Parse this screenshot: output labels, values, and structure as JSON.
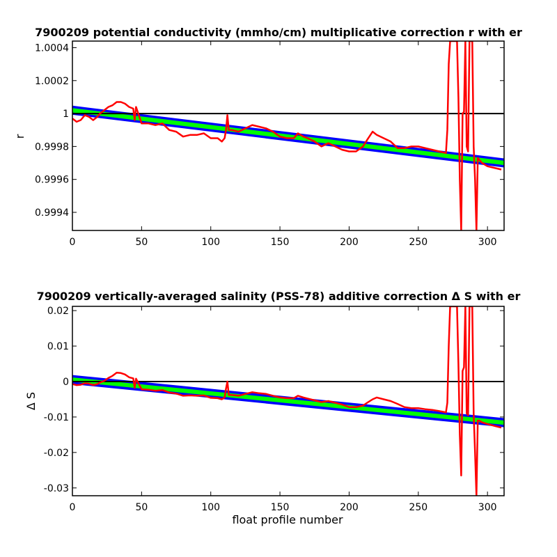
{
  "chart_data": [
    {
      "type": "line",
      "title": "7900209 potential conductivity (mmho/cm) multiplicative correction r with er",
      "xlabel": "",
      "ylabel": "r",
      "xlim": [
        0,
        312
      ],
      "ylim": [
        0.99929,
        1.00044
      ],
      "xticks": [
        0,
        50,
        100,
        150,
        200,
        250,
        300
      ],
      "xtick_labels": [
        "0",
        "50",
        "100",
        "150",
        "200",
        "250",
        "300"
      ],
      "yticks": [
        0.9994,
        0.9996,
        0.9998,
        1.0,
        1.0002,
        1.0004
      ],
      "ytick_labels": [
        "0.9994",
        "0.9996",
        "0.9998",
        "1",
        "1.0002",
        "1.0004"
      ],
      "grid": false,
      "reference_line": {
        "y": 1.0,
        "color": "#000000"
      },
      "series": [
        {
          "role": "error-band",
          "color": "#0000ff",
          "fit_start": [
            0,
            1.00002
          ],
          "fit_end": [
            312,
            0.9997
          ],
          "half_width": 2.55e-05
        },
        {
          "role": "fit",
          "color": "#00ff00",
          "fit_start": [
            0,
            1.00002
          ],
          "fit_end": [
            312,
            0.9997
          ],
          "half_width": 1.1e-05
        },
        {
          "role": "data",
          "color": "#ff0000",
          "x": [
            0,
            3,
            6,
            9,
            12,
            15,
            18,
            20,
            23,
            26,
            29,
            32,
            35,
            38,
            41,
            44,
            45,
            46,
            50,
            55,
            60,
            65,
            70,
            75,
            80,
            85,
            90,
            95,
            100,
            105,
            108,
            110,
            111,
            112,
            113,
            115,
            120,
            125,
            130,
            135,
            140,
            145,
            150,
            155,
            160,
            163,
            167,
            170,
            175,
            180,
            185,
            190,
            195,
            200,
            205,
            210,
            213,
            217,
            220,
            225,
            230,
            235,
            240,
            245,
            250,
            255,
            260,
            265,
            270,
            271,
            272,
            273,
            274,
            275,
            276,
            277,
            278,
            279,
            280,
            281,
            282,
            283,
            284,
            285,
            286,
            287,
            288,
            289,
            290,
            291,
            292,
            293,
            294,
            296,
            300,
            305,
            310
          ],
          "y": [
            0.99997,
            0.99995,
            0.99996,
            0.99999,
            0.99998,
            0.99996,
            0.99998,
            1.0,
            1.00002,
            1.00004,
            1.00005,
            1.00007,
            1.00007,
            1.00006,
            1.00004,
            1.00003,
            0.99996,
            1.00004,
            0.99994,
            0.99994,
            0.99993,
            0.99994,
            0.9999,
            0.99989,
            0.99986,
            0.99987,
            0.99987,
            0.99988,
            0.99985,
            0.99985,
            0.99983,
            0.99985,
            0.9999,
            0.99999,
            0.9999,
            0.9999,
            0.99989,
            0.99991,
            0.99993,
            0.99992,
            0.99991,
            0.99989,
            0.99986,
            0.99985,
            0.99985,
            0.99988,
            0.99986,
            0.99985,
            0.99983,
            0.9998,
            0.99982,
            0.9998,
            0.99978,
            0.99977,
            0.99977,
            0.9998,
            0.99984,
            0.99989,
            0.99987,
            0.99985,
            0.99983,
            0.99979,
            0.99979,
            0.9998,
            0.9998,
            0.99979,
            0.99978,
            0.99977,
            0.99976,
            0.9999,
            1.0003,
            1.00044,
            1.00044,
            1.00044,
            1.00044,
            1.00044,
            1.00044,
            1.0001,
            0.9996,
            0.99929,
            1.0,
            1.00001,
            1.00044,
            0.9998,
            0.99977,
            1.00044,
            1.00044,
            1.00044,
            0.9998,
            0.9996,
            0.99929,
            0.99973,
            0.99972,
            0.9997,
            0.99968,
            0.99967,
            0.99966
          ]
        }
      ]
    },
    {
      "type": "line",
      "title": "7900209 vertically-averaged salinity (PSS-78) additive correction Δ S with er",
      "xlabel": "float profile number",
      "ylabel": "Δ S",
      "xlim": [
        0,
        312
      ],
      "ylim": [
        -0.0322,
        0.0212
      ],
      "xticks": [
        0,
        50,
        100,
        150,
        200,
        250,
        300
      ],
      "xtick_labels": [
        "0",
        "50",
        "100",
        "150",
        "200",
        "250",
        "300"
      ],
      "yticks": [
        -0.03,
        -0.02,
        -0.01,
        0,
        0.01,
        0.02
      ],
      "ytick_labels": [
        "-0.03",
        "-0.02",
        "-0.01",
        "0",
        "0.01",
        "0.02"
      ],
      "grid": false,
      "reference_line": {
        "y": 0.0,
        "color": "#000000"
      },
      "series": [
        {
          "role": "error-band",
          "color": "#0000ff",
          "fit_start": [
            0,
            0.00055
          ],
          "fit_end": [
            312,
            -0.0116
          ],
          "half_width": 0.0012
        },
        {
          "role": "fit",
          "color": "#00ff00",
          "fit_start": [
            0,
            0.00055
          ],
          "fit_end": [
            312,
            -0.0116
          ],
          "half_width": 0.0005
        },
        {
          "role": "data",
          "color": "#ff0000",
          "x": [
            0,
            3,
            6,
            9,
            12,
            15,
            18,
            20,
            23,
            26,
            29,
            32,
            35,
            38,
            41,
            44,
            45,
            46,
            50,
            55,
            60,
            65,
            70,
            75,
            80,
            85,
            90,
            95,
            100,
            105,
            108,
            110,
            111,
            112,
            113,
            115,
            120,
            125,
            130,
            135,
            140,
            145,
            150,
            155,
            160,
            163,
            167,
            170,
            175,
            180,
            185,
            190,
            195,
            200,
            205,
            210,
            213,
            217,
            220,
            225,
            230,
            235,
            240,
            245,
            250,
            255,
            260,
            265,
            270,
            271,
            272,
            273,
            274,
            275,
            276,
            277,
            278,
            279,
            280,
            281,
            282,
            283,
            284,
            285,
            286,
            287,
            288,
            289,
            290,
            291,
            292,
            293,
            294,
            296,
            300,
            305,
            310
          ],
          "y": [
            -0.0007,
            -0.001,
            -0.0009,
            -0.0005,
            -0.0006,
            -0.001,
            -0.0007,
            -0.0003,
            0.0002,
            0.001,
            0.0016,
            0.0025,
            0.0024,
            0.002,
            0.0012,
            0.0009,
            -0.0018,
            0.0008,
            -0.0022,
            -0.0023,
            -0.0026,
            -0.0024,
            -0.0031,
            -0.0034,
            -0.004,
            -0.0039,
            -0.004,
            -0.0039,
            -0.0046,
            -0.0047,
            -0.005,
            -0.0045,
            -0.002,
            0.0,
            -0.0038,
            -0.0038,
            -0.004,
            -0.0035,
            -0.003,
            -0.0033,
            -0.0035,
            -0.004,
            -0.0045,
            -0.0047,
            -0.0047,
            -0.004,
            -0.0045,
            -0.0048,
            -0.0053,
            -0.0058,
            -0.0055,
            -0.006,
            -0.0065,
            -0.0072,
            -0.0072,
            -0.0068,
            -0.006,
            -0.005,
            -0.0045,
            -0.005,
            -0.0055,
            -0.0063,
            -0.0072,
            -0.0075,
            -0.0075,
            -0.0078,
            -0.008,
            -0.0083,
            -0.0087,
            -0.006,
            0.01,
            0.0212,
            0.0212,
            0.0212,
            0.0212,
            0.0212,
            0.0212,
            0.005,
            -0.015,
            -0.0265,
            0.003,
            0.004,
            0.0212,
            -0.009,
            -0.0095,
            0.0212,
            0.0212,
            0.0212,
            -0.009,
            -0.02,
            -0.0322,
            -0.011,
            -0.011,
            -0.0115,
            -0.012,
            -0.0125,
            -0.013
          ]
        }
      ]
    }
  ]
}
